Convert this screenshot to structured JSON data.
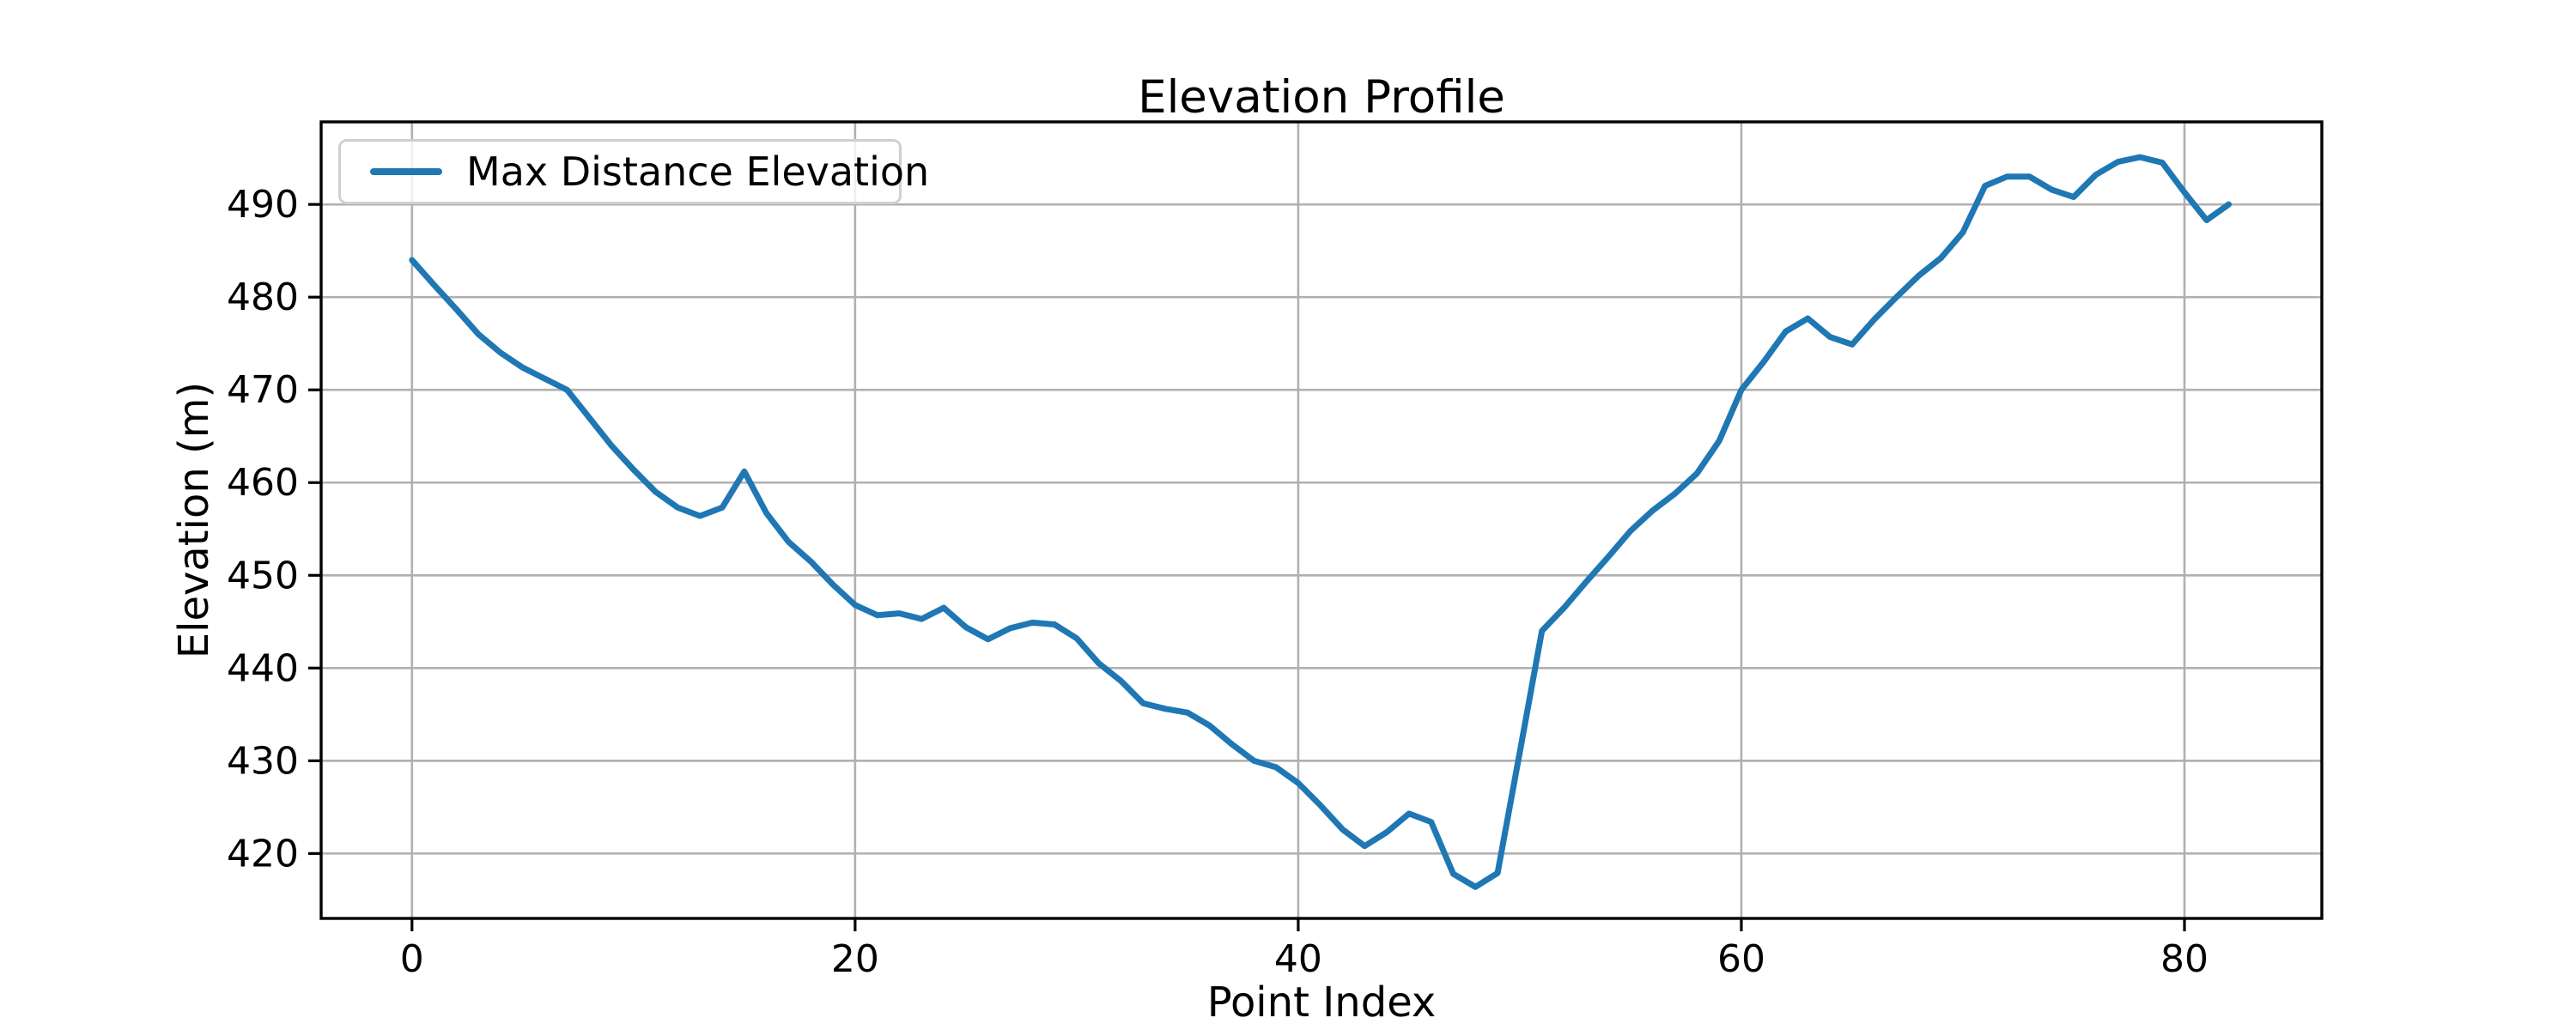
{
  "chart_data": {
    "type": "line",
    "title": "Elevation Profile",
    "xlabel": "Point Index",
    "ylabel": "Elevation (m)",
    "legend_position": "upper left",
    "grid": true,
    "background_color": "#ffffff",
    "grid_color": "#b0b0b0",
    "spine_color": "#000000",
    "line_color": "#1f77b4",
    "xlim": [
      -4.1,
      86.2
    ],
    "ylim": [
      413.0,
      498.9
    ],
    "xticks": [
      0,
      20,
      40,
      60,
      80
    ],
    "yticks": [
      420,
      430,
      440,
      450,
      460,
      470,
      480,
      490
    ],
    "x": [
      0,
      1,
      2,
      3,
      4,
      5,
      6,
      7,
      8,
      9,
      10,
      11,
      12,
      13,
      14,
      15,
      16,
      17,
      18,
      19,
      20,
      21,
      22,
      23,
      24,
      25,
      26,
      27,
      28,
      29,
      30,
      31,
      32,
      33,
      34,
      35,
      36,
      37,
      38,
      39,
      40,
      41,
      42,
      43,
      44,
      45,
      46,
      47,
      48,
      49,
      50,
      51,
      52,
      53,
      54,
      55,
      56,
      57,
      58,
      59,
      60,
      61,
      62,
      63,
      64,
      65,
      66,
      67,
      68,
      69,
      70,
      71,
      72,
      73,
      74,
      75,
      76,
      77,
      78,
      79,
      80,
      81,
      82
    ],
    "series": [
      {
        "name": "Max Distance Elevation",
        "color": "#1f77b4",
        "values": [
          484.0,
          481.3,
          478.7,
          476.0,
          474.0,
          472.4,
          471.2,
          470.0,
          467.0,
          464.0,
          461.4,
          459.0,
          457.3,
          456.4,
          457.3,
          461.2,
          456.7,
          453.6,
          451.5,
          449.0,
          446.8,
          445.7,
          445.9,
          445.3,
          446.5,
          444.4,
          443.1,
          444.3,
          444.9,
          444.7,
          443.2,
          440.5,
          438.6,
          436.2,
          435.6,
          435.2,
          433.8,
          431.8,
          430.0,
          429.3,
          427.6,
          425.2,
          422.6,
          420.8,
          422.3,
          424.3,
          423.4,
          417.8,
          416.4,
          417.9,
          430.9,
          444.0,
          446.5,
          449.3,
          452.0,
          454.8,
          457.0,
          458.8,
          461.0,
          464.5,
          470.0,
          473.0,
          476.3,
          477.7,
          475.7,
          474.9,
          477.6,
          480.0,
          482.3,
          484.2,
          487.0,
          492.0,
          493.0,
          493.0,
          491.6,
          490.8,
          493.2,
          494.6,
          495.1,
          494.5,
          491.3,
          488.3,
          490.0
        ]
      }
    ]
  }
}
